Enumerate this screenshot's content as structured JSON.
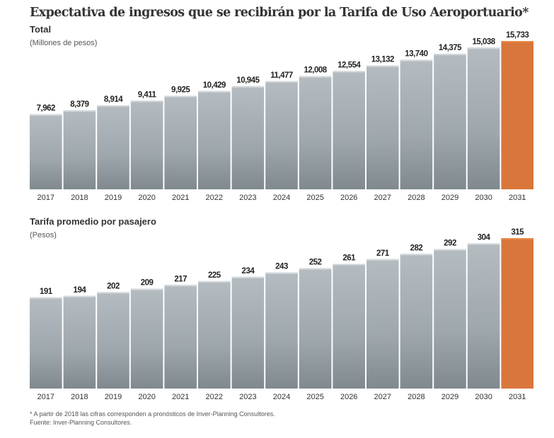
{
  "title": "Expectativa de ingresos que se recibirán por la Tarifa de Uso Aeroportuario*",
  "colors": {
    "bar": "#a9b1b6",
    "highlight": "#d9763c",
    "text": "#333333"
  },
  "chart_data": [
    {
      "type": "bar",
      "title": "Total",
      "ylabel": "(Millones de pesos)",
      "categories": [
        "2017",
        "2018",
        "2019",
        "2020",
        "2021",
        "2022",
        "2023",
        "2024",
        "2025",
        "2026",
        "2027",
        "2028",
        "2029",
        "2030",
        "2031"
      ],
      "values": [
        7962,
        8379,
        8914,
        9411,
        9925,
        10429,
        10945,
        11477,
        12008,
        12554,
        13132,
        13740,
        14375,
        15038,
        15733
      ],
      "labels": [
        "7,962",
        "8,379",
        "8,914",
        "9,411",
        "9,925",
        "10,429",
        "10,945",
        "11,477",
        "12,008",
        "12,554",
        "13,132",
        "13,740",
        "14,375",
        "15,038",
        "15,733"
      ],
      "highlight_category": "2031",
      "ylim": [
        0,
        15733
      ]
    },
    {
      "type": "bar",
      "title": "Tarifa promedio por pasajero",
      "ylabel": "(Pesos)",
      "categories": [
        "2017",
        "2018",
        "2019",
        "2020",
        "2021",
        "2022",
        "2023",
        "2024",
        "2025",
        "2026",
        "2027",
        "2028",
        "2029",
        "2030",
        "2031"
      ],
      "values": [
        191,
        194,
        202,
        209,
        217,
        225,
        234,
        243,
        252,
        261,
        271,
        282,
        292,
        304,
        315
      ],
      "labels": [
        "191",
        "194",
        "202",
        "209",
        "217",
        "225",
        "234",
        "243",
        "252",
        "261",
        "271",
        "282",
        "292",
        "304",
        "315"
      ],
      "highlight_category": "2031",
      "ylim": [
        0,
        315
      ]
    }
  ],
  "footnote": "* A partir de 2018 las cifras corresponden a pronósticos de Inver-Planning Consultores.",
  "source": "Fuente: Inver-Planning Consultores."
}
